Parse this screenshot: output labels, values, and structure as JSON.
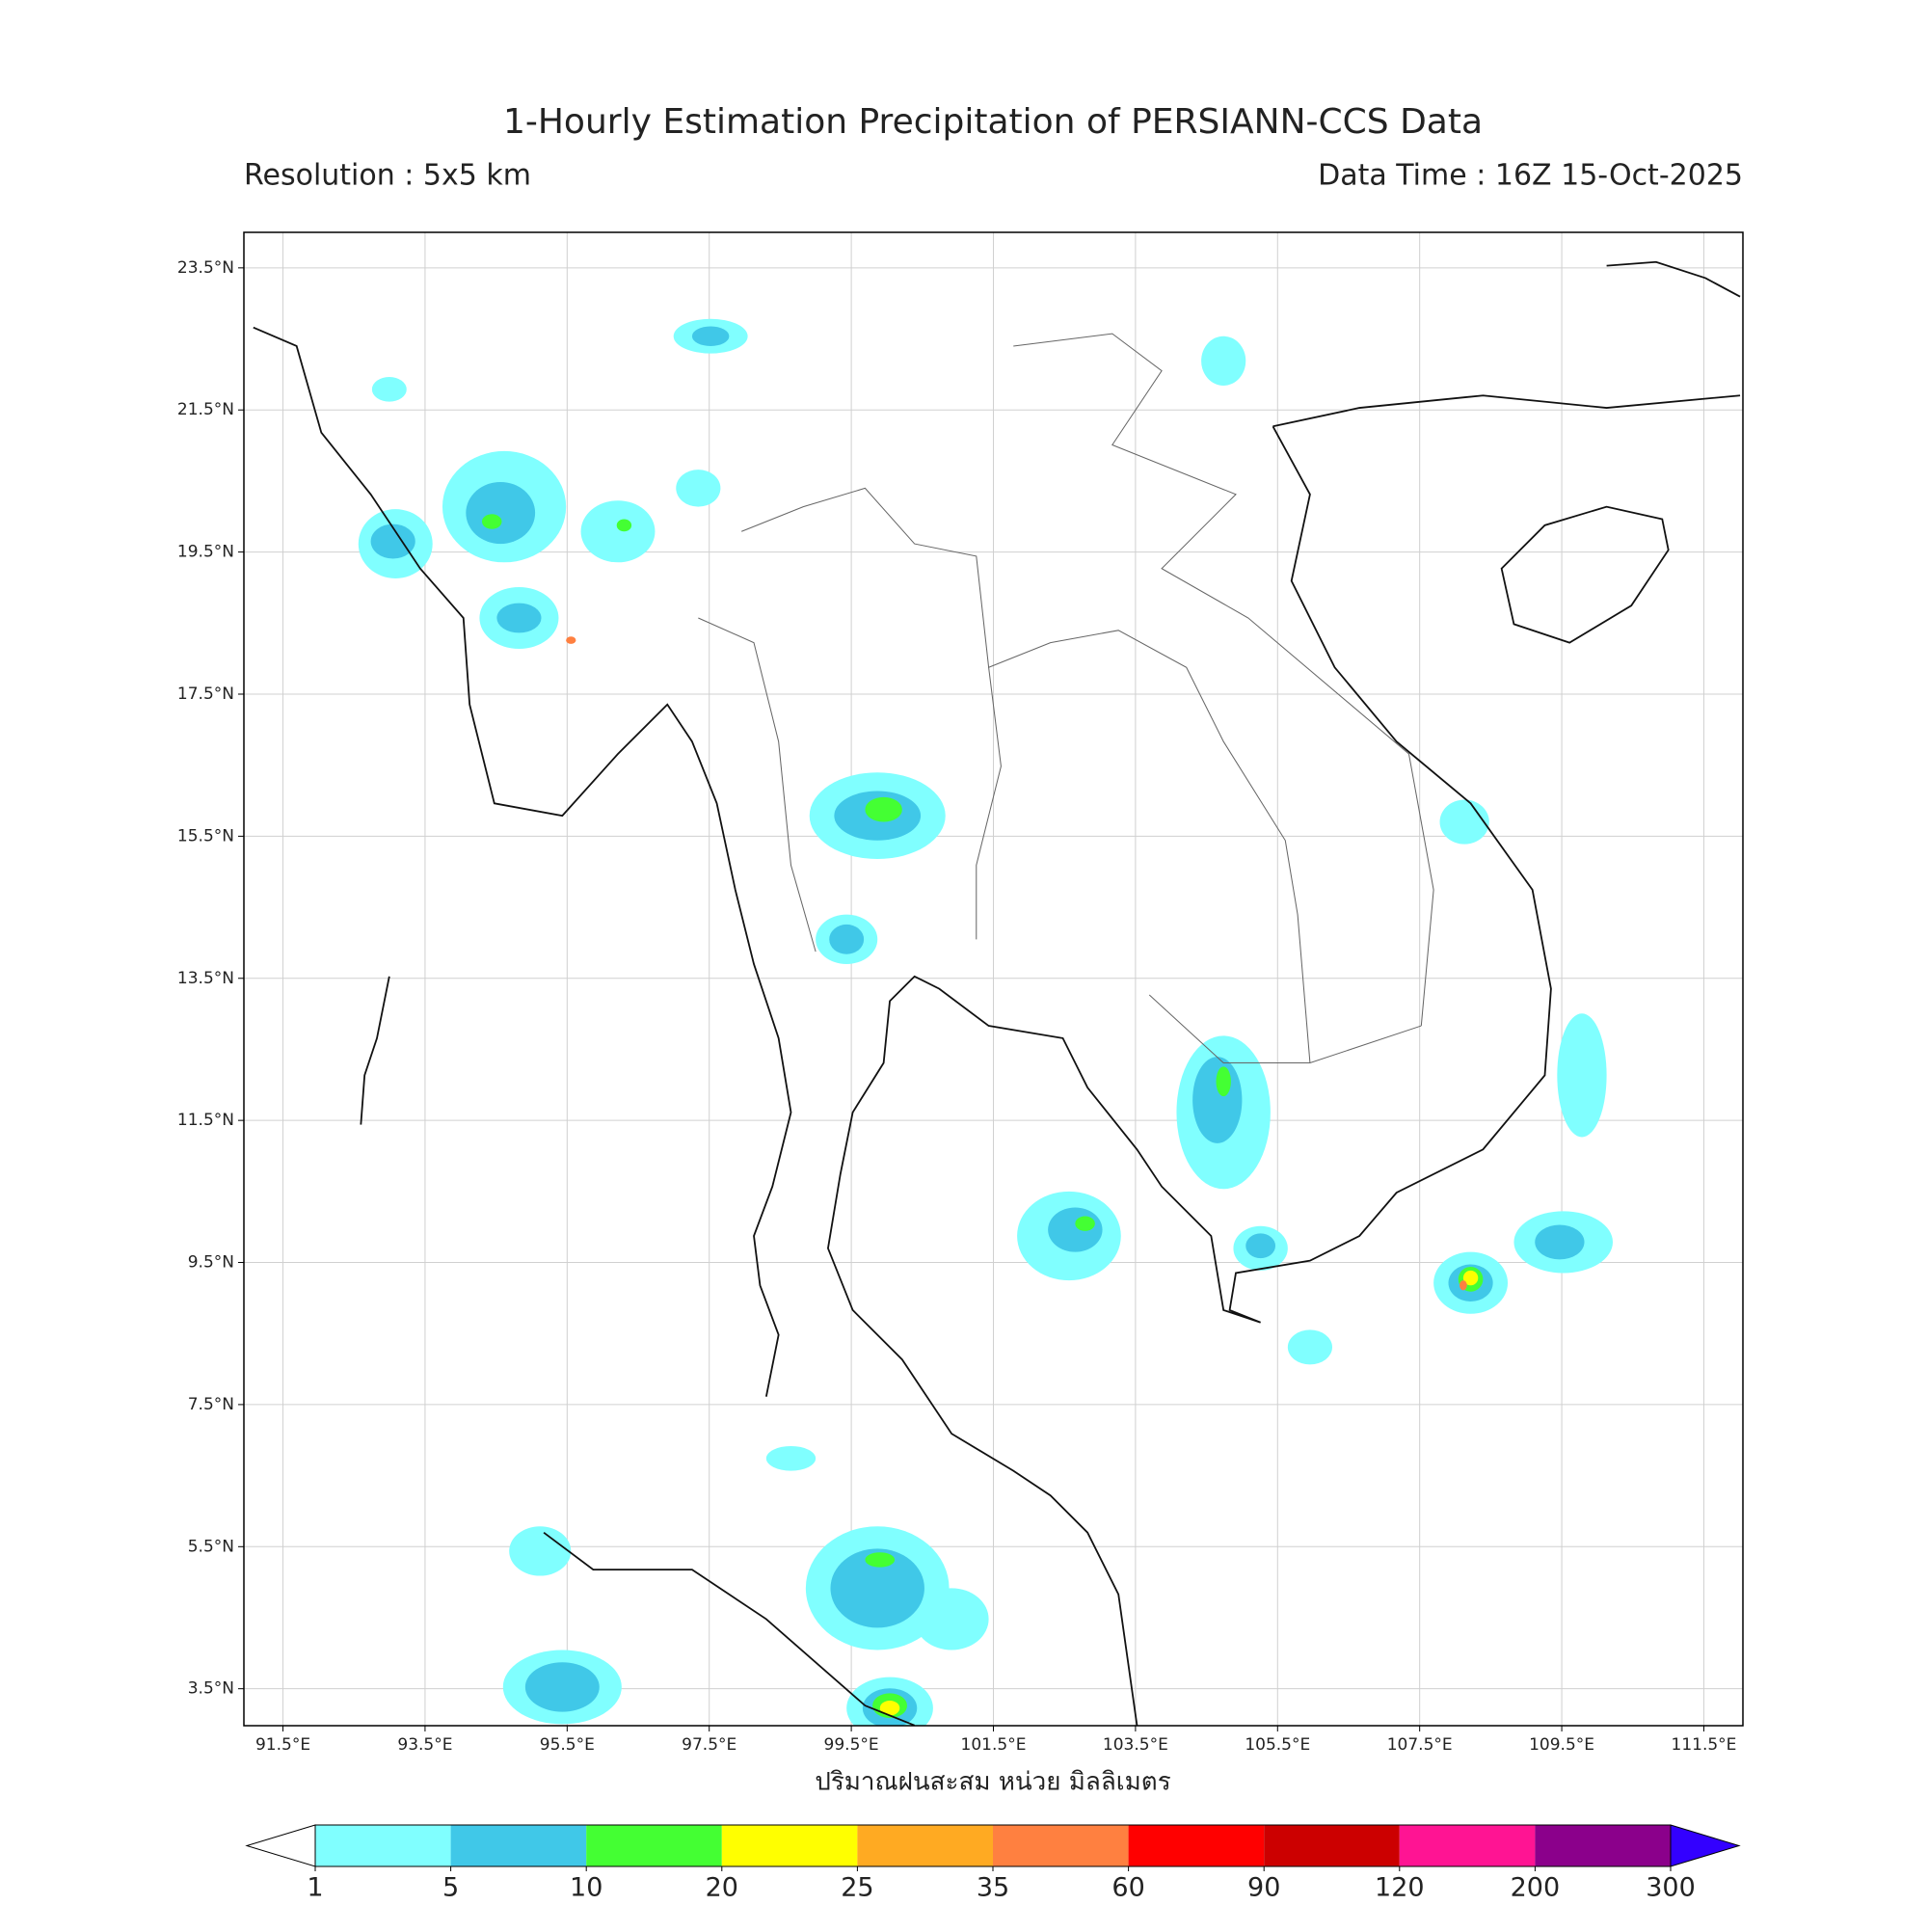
{
  "title": "1-Hourly Estimation Precipitation of PERSIANN-CCS Data",
  "resolution": "Resolution : 5x5 km",
  "data_time": "Data Time : 16Z 15-Oct-2025",
  "x_axis_label": "ปริมาณฝนสะสม หน่วย มิลลิเมตร",
  "map": {
    "lon_range": [
      90.95,
      112.05
    ],
    "lat_range": [
      2.98,
      24.0
    ],
    "lon_ticks": [
      {
        "value": 91.5,
        "label": "91.5°E"
      },
      {
        "value": 93.5,
        "label": "93.5°E"
      },
      {
        "value": 95.5,
        "label": "95.5°E"
      },
      {
        "value": 97.5,
        "label": "97.5°E"
      },
      {
        "value": 99.5,
        "label": "99.5°E"
      },
      {
        "value": 101.5,
        "label": "101.5°E"
      },
      {
        "value": 103.5,
        "label": "103.5°E"
      },
      {
        "value": 105.5,
        "label": "105.5°E"
      },
      {
        "value": 107.5,
        "label": "107.5°E"
      },
      {
        "value": 109.5,
        "label": "109.5°E"
      },
      {
        "value": 111.5,
        "label": "111.5°E"
      }
    ],
    "lat_ticks": [
      {
        "value": 23.5,
        "label": "23.5°N"
      },
      {
        "value": 21.5,
        "label": "21.5°N"
      },
      {
        "value": 19.5,
        "label": "19.5°N"
      },
      {
        "value": 17.5,
        "label": "17.5°N"
      },
      {
        "value": 15.5,
        "label": "15.5°N"
      },
      {
        "value": 13.5,
        "label": "13.5°N"
      },
      {
        "value": 11.5,
        "label": "11.5°N"
      },
      {
        "value": 9.5,
        "label": "9.5°N"
      },
      {
        "value": 7.5,
        "label": "7.5°N"
      },
      {
        "value": 5.5,
        "label": "5.5°N"
      },
      {
        "value": 3.5,
        "label": "3.5°N"
      }
    ],
    "grid": true
  },
  "colorbar": {
    "levels": [
      1,
      5,
      10,
      20,
      25,
      35,
      60,
      90,
      120,
      200,
      300
    ],
    "colors": [
      "#80ffff",
      "#40c8e8",
      "#44ff33",
      "#ffff00",
      "#ffaa22",
      "#ff8040",
      "#ff0000",
      "#cc0000",
      "#ff1493",
      "#8b008b"
    ],
    "under_color": "#ffffff",
    "over_color": "#3300ff"
  }
}
